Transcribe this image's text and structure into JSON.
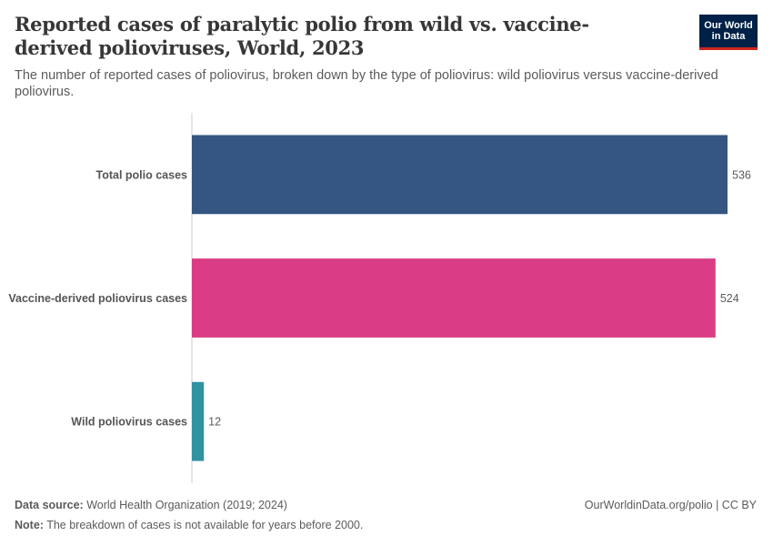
{
  "header": {
    "title": "Reported cases of paralytic polio from wild vs. vaccine-derived polioviruses, World, 2023",
    "subtitle": "The number of reported cases of poliovirus, broken down by the type of poliovirus: wild poliovirus versus vaccine-derived poliovirus."
  },
  "logo": {
    "line1": "Our World",
    "line2": "in Data"
  },
  "chart_data": {
    "type": "bar",
    "orientation": "horizontal",
    "categories": [
      "Total polio cases",
      "Vaccine-derived poliovirus cases",
      "Wild poliovirus cases"
    ],
    "values": [
      536,
      524,
      12
    ],
    "colors": [
      "#345680",
      "#da3d85",
      "#3193a0"
    ],
    "title": "Reported cases of paralytic polio from wild vs. vaccine-derived polioviruses, World, 2023",
    "xlim": [
      0,
      536
    ],
    "grid": false
  },
  "footer": {
    "source_label": "Data source:",
    "source_text": "World Health Organization (2019; 2024)",
    "url_text": "OurWorldinData.org/polio | CC BY",
    "note_label": "Note:",
    "note_text": "The breakdown of cases is not available for years before 2000."
  }
}
